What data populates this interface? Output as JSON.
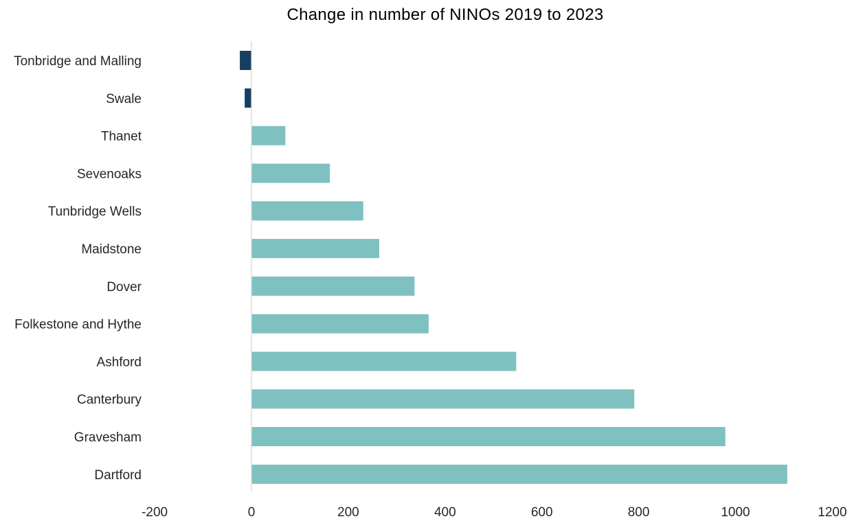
{
  "chart_data": {
    "type": "bar",
    "orientation": "horizontal",
    "title": "Change in number of NINOs 2019 to 2023",
    "xlabel": "",
    "ylabel": "",
    "xlim": [
      -200,
      1200
    ],
    "x_ticks": [
      "-200",
      "0",
      "200",
      "400",
      "600",
      "800",
      "1000",
      "1200"
    ],
    "categories": [
      "Tonbridge and Malling",
      "Swale",
      "Thanet",
      "Sevenoaks",
      "Tunbridge Wells",
      "Maidstone",
      "Dover",
      "Folkestone and Hythe",
      "Ashford",
      "Canterbury",
      "Gravesham",
      "Dartford"
    ],
    "values": [
      -24,
      -14,
      70,
      162,
      231,
      264,
      337,
      366,
      547,
      791,
      979,
      1107
    ],
    "colors": {
      "positive": "#7fc1c0",
      "negative": "#173e5e",
      "axis": "#d9d9d9"
    },
    "grid": false,
    "legend": "none"
  }
}
